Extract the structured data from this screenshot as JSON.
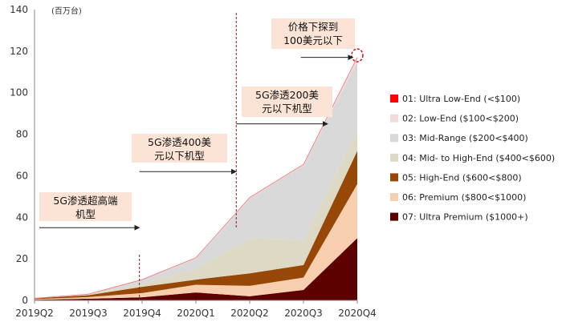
{
  "chart_data": {
    "type": "area",
    "stacked": true,
    "unit": "(百万台)",
    "categories": [
      "2019Q2",
      "2019Q3",
      "2019Q4",
      "2020Q1",
      "2020Q2",
      "2020Q3",
      "2020Q4"
    ],
    "ylim": [
      0,
      140
    ],
    "yticks": [
      0,
      20,
      40,
      60,
      80,
      100,
      120,
      140
    ],
    "grid": false,
    "legend_position": "right",
    "series": [
      {
        "name": "07: Ultra Premium ($1000+)",
        "color": "#5c0000",
        "values": [
          0.3,
          0.8,
          1.5,
          3.8,
          2.0,
          5.0,
          30.0
        ]
      },
      {
        "name": "06: Premium ($800<$1000)",
        "color": "#f8cfae",
        "values": [
          0.3,
          0.8,
          2.0,
          3.7,
          5.0,
          6.0,
          26.0
        ]
      },
      {
        "name": "05: High-End ($600<$800)",
        "color": "#974806",
        "values": [
          0.4,
          0.9,
          3.0,
          2.5,
          6.0,
          6.0,
          16.0
        ]
      },
      {
        "name": "04: Mid- to High-End ($400<$600)",
        "color": "#ddd9c4",
        "values": [
          0.0,
          0.2,
          1.5,
          5.0,
          17.0,
          12.0,
          10.0
        ]
      },
      {
        "name": "03: Mid-Range ($200<$400)",
        "color": "#d9d9d9",
        "values": [
          0.0,
          0.3,
          2.0,
          5.0,
          19.0,
          36.0,
          33.0
        ]
      },
      {
        "name": "02: Low-End ($100<$200)",
        "color": "#f2dcdb",
        "values": [
          0.0,
          0.0,
          0.0,
          0.5,
          0.5,
          0.5,
          2.0
        ]
      },
      {
        "name": "01: Ultra Low-End (<$100)",
        "color": "#ff0000",
        "values": [
          0,
          0,
          0,
          0,
          0,
          0,
          0
        ]
      }
    ],
    "annotations": [
      {
        "id": "ann1",
        "lines": [
          "5G渗透超高端",
          "机型"
        ],
        "arrow_from_x": 0.0,
        "arrow_to_x": 1.95,
        "arrow_y": 35
      },
      {
        "id": "ann2",
        "lines": [
          "5G渗透400美",
          "元以下机型"
        ],
        "arrow_from_x": 1.95,
        "arrow_to_x": 3.75,
        "arrow_y": 62
      },
      {
        "id": "ann3",
        "lines": [
          "5G渗透200美",
          "元以下机型"
        ],
        "arrow_from_x": 3.75,
        "arrow_to_x": 5.45,
        "arrow_y": 85
      },
      {
        "id": "ann4",
        "lines": [
          "价格下探到",
          "100美元以下"
        ],
        "arrow_from_x": 4.95,
        "arrow_to_x": 5.95,
        "arrow_y": 117
      }
    ],
    "vertical_markers_x": [
      1.95,
      3.75
    ],
    "highlight_point": {
      "x": 6,
      "y": 118
    }
  }
}
